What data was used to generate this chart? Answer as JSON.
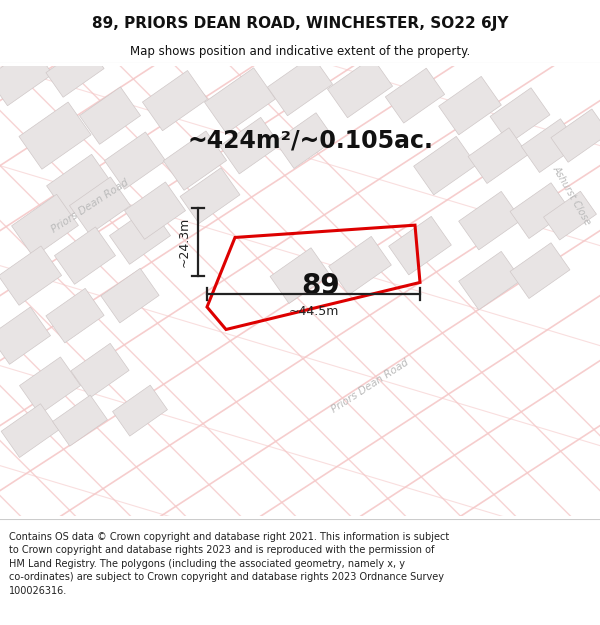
{
  "title": "89, PRIORS DEAN ROAD, WINCHESTER, SO22 6JY",
  "subtitle": "Map shows position and indicative extent of the property.",
  "footer": "Contains OS data © Crown copyright and database right 2021. This information is subject to Crown copyright and database rights 2023 and is reproduced with the permission of HM Land Registry. The polygons (including the associated geometry, namely x, y co-ordinates) are subject to Crown copyright and database rights 2023 Ordnance Survey 100026316.",
  "area_label": "~424m²/~0.105ac.",
  "width_label": "~44.5m",
  "height_label": "~24.3m",
  "plot_number": "89",
  "road_fill": "#f5c8c8",
  "road_edge": "#e8b0b0",
  "build_fill": "#e8e4e4",
  "build_edge": "#d0c8c8",
  "plot_edge": "#dd0000",
  "bg_color": "#ffffff",
  "dim_color": "#222222",
  "road_text_color": "#bbbbbb",
  "title_color": "#111111",
  "footer_color": "#222222",
  "map_bg": "#ffffff"
}
